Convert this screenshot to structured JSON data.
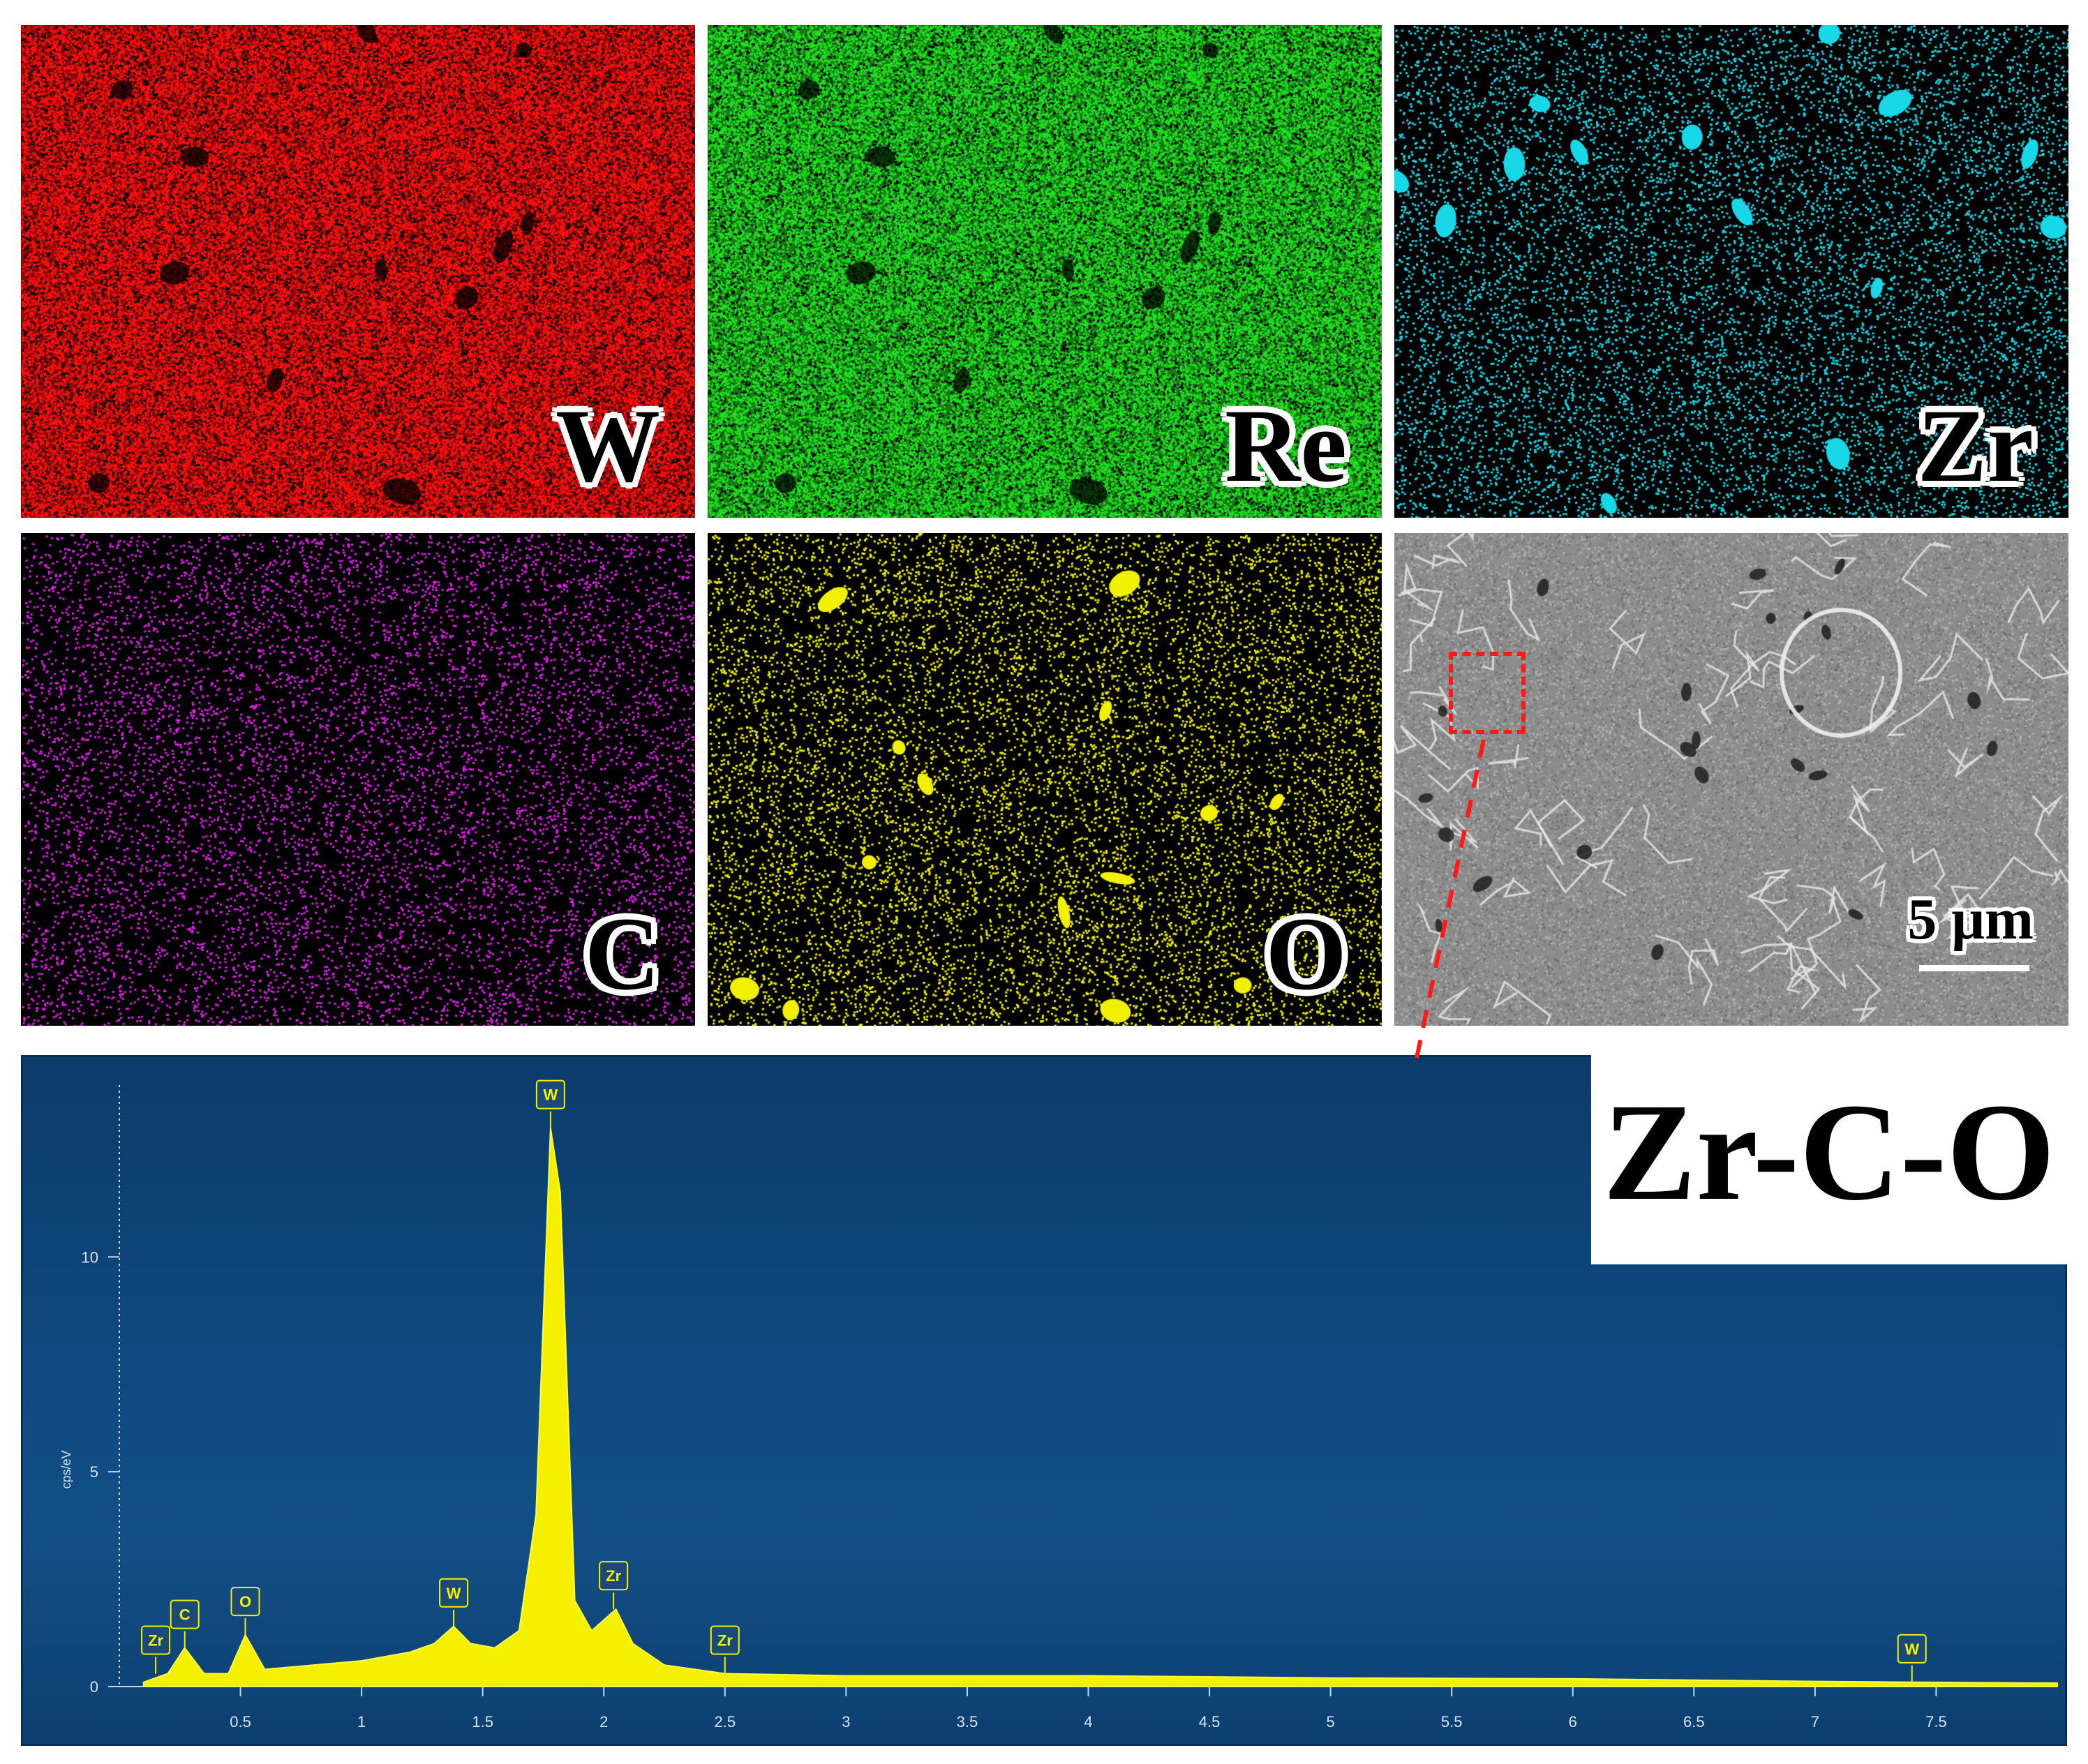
{
  "maps": [
    {
      "id": "w",
      "label": "W",
      "color": "#ff1010",
      "style": "dense",
      "dark_blobs": 12
    },
    {
      "id": "re",
      "label": "Re",
      "color": "#22e022",
      "style": "dense",
      "dark_blobs": 12
    },
    {
      "id": "zr",
      "label": "Zr",
      "color": "#18d8e8",
      "style": "sparse",
      "bright_blobs": 14
    },
    {
      "id": "c",
      "label": "C",
      "color": "#e020e8",
      "style": "sparse"
    },
    {
      "id": "o",
      "label": "O",
      "color": "#f0f000",
      "style": "sparse",
      "bright_blobs": 14
    }
  ],
  "sem": {
    "scale_label": "5 μm"
  },
  "compound_label": "Zr-C-O",
  "chart_data": {
    "type": "area",
    "xlim": [
      0,
      8
    ],
    "ylim": [
      0,
      14
    ],
    "ylabel": "cps/eV",
    "x_ticks": [
      "0.5",
      "1",
      "1.5",
      "2",
      "2.5",
      "3",
      "3.5",
      "4",
      "4.5",
      "5",
      "5.5",
      "6",
      "6.5",
      "7",
      "7.5"
    ],
    "y_ticks": [
      "0",
      "5",
      "10"
    ],
    "series": [
      {
        "x": [
          0.1,
          0.2,
          0.27,
          0.35,
          0.45,
          0.52,
          0.6,
          0.8,
          1.0,
          1.2,
          1.3,
          1.38,
          1.45,
          1.55,
          1.65,
          1.72,
          1.78,
          1.82,
          1.88,
          1.95,
          2.05,
          2.12,
          2.25,
          2.5,
          3.0,
          4.0,
          5.0,
          6.0,
          7.0,
          7.4,
          8.0
        ],
        "y": [
          0.1,
          0.3,
          0.9,
          0.3,
          0.3,
          1.2,
          0.4,
          0.5,
          0.6,
          0.8,
          1.0,
          1.4,
          1.0,
          0.9,
          1.3,
          4.0,
          13.0,
          11.5,
          2.0,
          1.3,
          1.8,
          1.0,
          0.5,
          0.3,
          0.25,
          0.25,
          0.2,
          0.18,
          0.12,
          0.1,
          0.08
        ]
      }
    ],
    "peak_labels": [
      {
        "label": "Zr",
        "x": 0.15,
        "y": 0.3
      },
      {
        "label": "C",
        "x": 0.27,
        "y": 0.9
      },
      {
        "label": "O",
        "x": 0.52,
        "y": 1.2
      },
      {
        "label": "W",
        "x": 1.38,
        "y": 1.4
      },
      {
        "label": "W",
        "x": 1.78,
        "y": 13.0
      },
      {
        "label": "Zr",
        "x": 2.04,
        "y": 1.8
      },
      {
        "label": "Zr",
        "x": 2.5,
        "y": 0.3
      },
      {
        "label": "W",
        "x": 7.4,
        "y": 0.1
      }
    ]
  }
}
